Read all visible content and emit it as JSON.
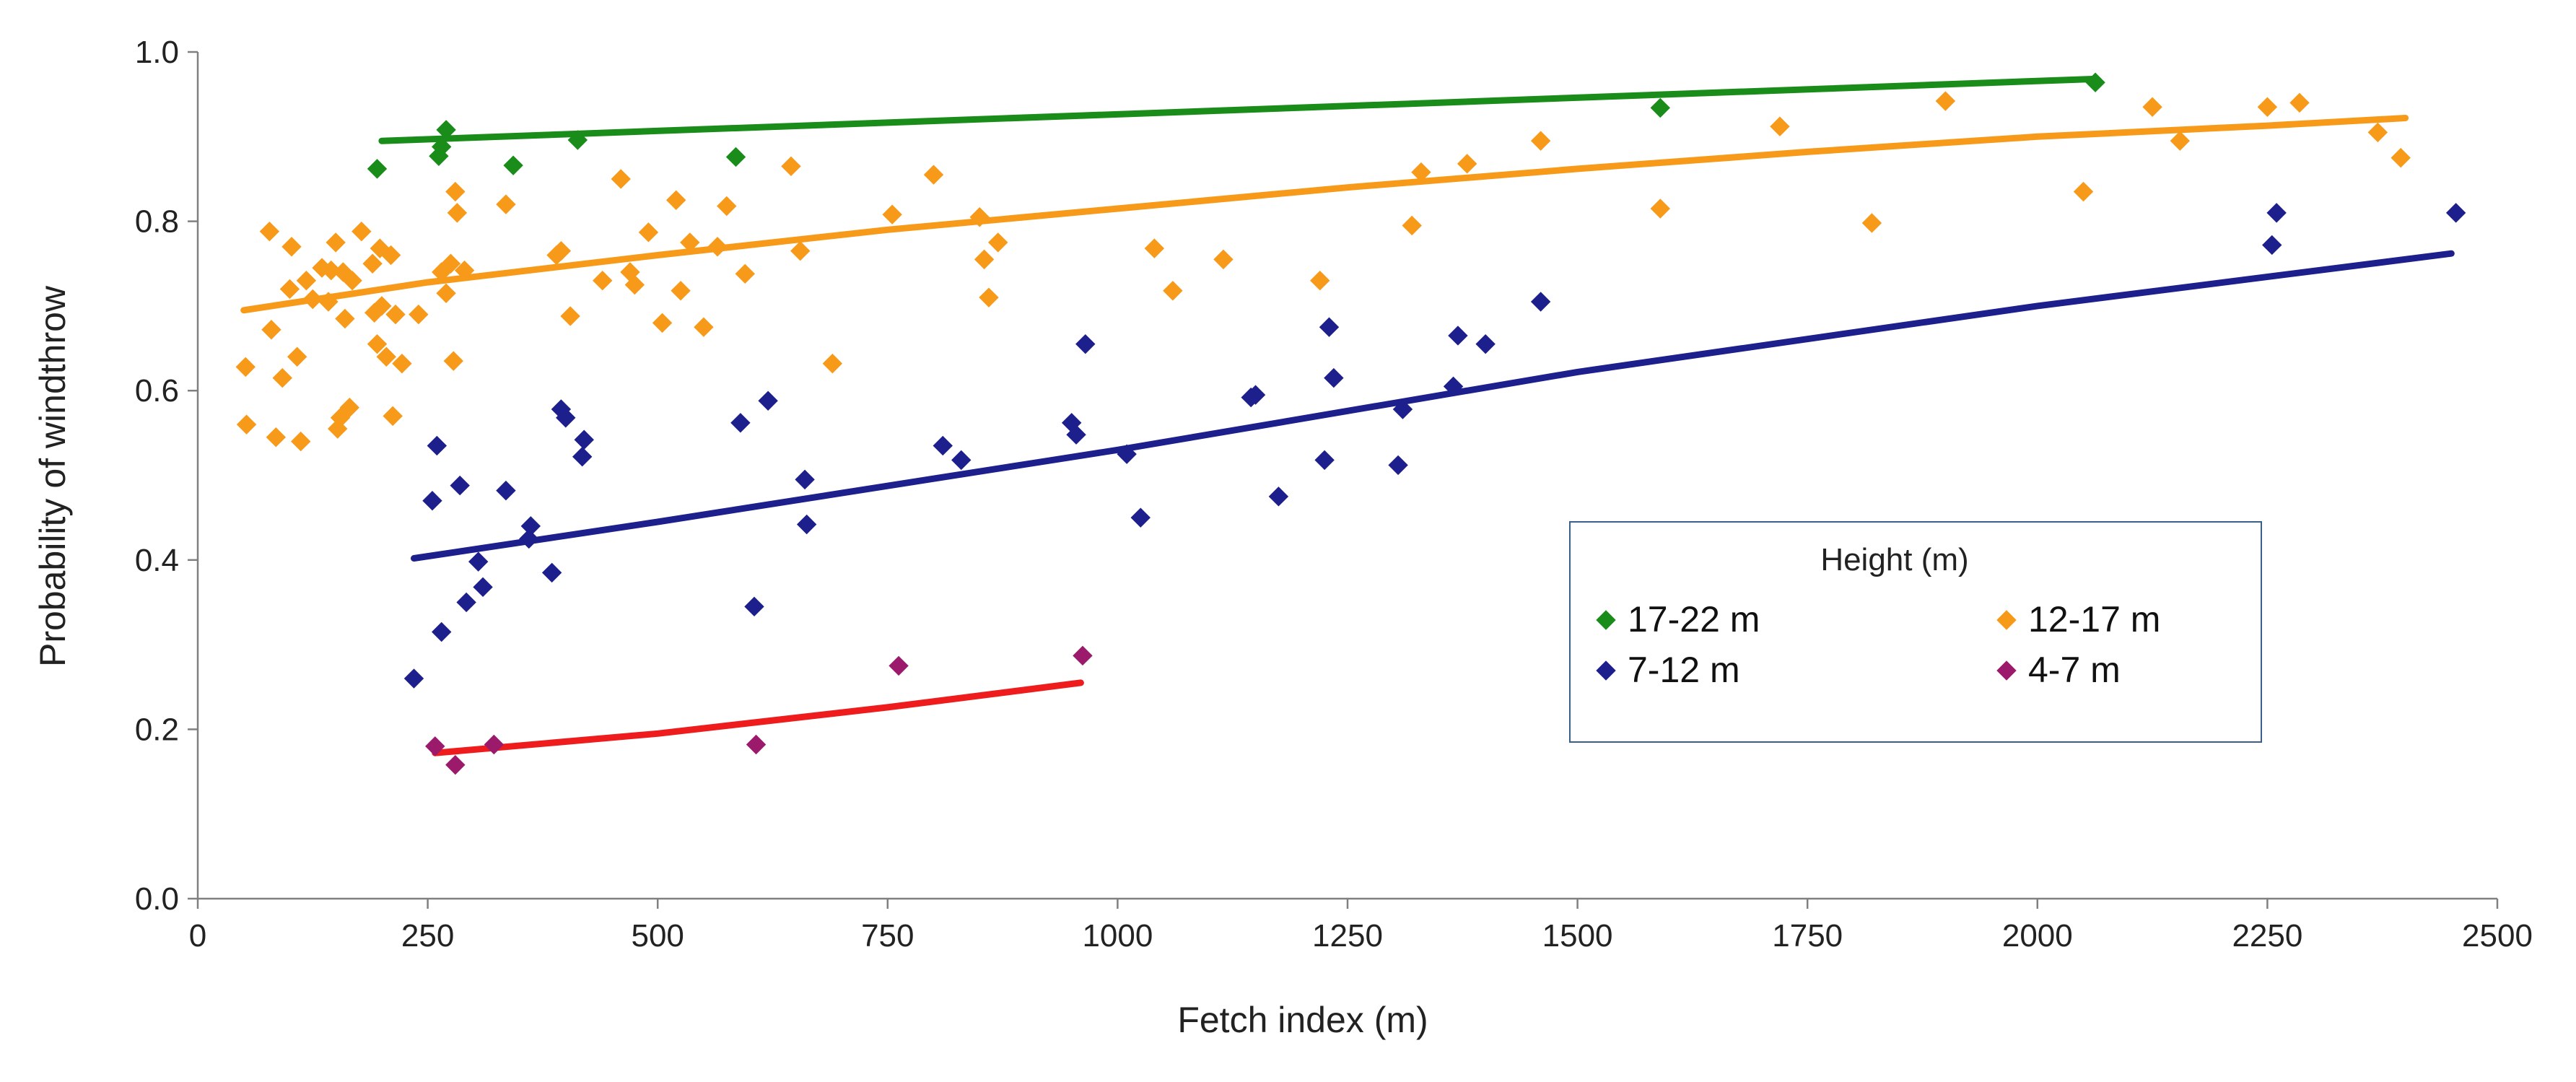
{
  "chart_data": {
    "type": "scatter",
    "title": "",
    "xlabel": "Fetch index (m)",
    "ylabel": "Probability of windthrow",
    "xlim": [
      0,
      2500
    ],
    "ylim": [
      0.0,
      1.0
    ],
    "xticks": [
      0,
      250,
      500,
      750,
      1000,
      1250,
      1500,
      1750,
      2000,
      2250,
      2500
    ],
    "xtick_labels": [
      "0",
      "250",
      "500",
      "750",
      "1000",
      "1250",
      "1500",
      "1750",
      "2000",
      "2250",
      "2500"
    ],
    "yticks": [
      0.0,
      0.2,
      0.4,
      0.6,
      0.8,
      1.0
    ],
    "ytick_labels": [
      "0.0",
      "0.2",
      "0.4",
      "0.6",
      "0.8",
      "1.0"
    ],
    "grid": false,
    "legend": {
      "title": "Height (m)",
      "placement": "center-right"
    },
    "series": [
      {
        "name": "17-22 m",
        "color": "#1a8c1a",
        "line_color": "#1a8c1a",
        "points": [
          [
            195,
            0.862
          ],
          [
            262,
            0.877
          ],
          [
            265,
            0.888
          ],
          [
            270,
            0.908
          ],
          [
            343,
            0.866
          ],
          [
            413,
            0.896
          ],
          [
            585,
            0.876
          ],
          [
            1590,
            0.934
          ],
          [
            2063,
            0.964
          ]
        ],
        "trend": [
          [
            200,
            0.895
          ],
          [
            2060,
            0.968
          ]
        ]
      },
      {
        "name": "12-17 m",
        "color": "#f79a1a",
        "line_color": "#f79a1a",
        "points": [
          [
            52,
            0.628
          ],
          [
            53,
            0.56
          ],
          [
            78,
            0.788
          ],
          [
            80,
            0.672
          ],
          [
            85,
            0.545
          ],
          [
            92,
            0.615
          ],
          [
            100,
            0.72
          ],
          [
            102,
            0.77
          ],
          [
            108,
            0.64
          ],
          [
            112,
            0.54
          ],
          [
            118,
            0.73
          ],
          [
            125,
            0.708
          ],
          [
            135,
            0.745
          ],
          [
            142,
            0.705
          ],
          [
            145,
            0.742
          ],
          [
            150,
            0.775
          ],
          [
            152,
            0.555
          ],
          [
            155,
            0.568
          ],
          [
            158,
            0.74
          ],
          [
            160,
            0.685
          ],
          [
            165,
            0.58
          ],
          [
            168,
            0.73
          ],
          [
            178,
            0.788
          ],
          [
            190,
            0.75
          ],
          [
            192,
            0.692
          ],
          [
            195,
            0.655
          ],
          [
            198,
            0.768
          ],
          [
            200,
            0.7
          ],
          [
            205,
            0.64
          ],
          [
            210,
            0.76
          ],
          [
            212,
            0.57
          ],
          [
            215,
            0.69
          ],
          [
            222,
            0.632
          ],
          [
            240,
            0.69
          ],
          [
            265,
            0.74
          ],
          [
            270,
            0.715
          ],
          [
            275,
            0.75
          ],
          [
            278,
            0.635
          ],
          [
            280,
            0.835
          ],
          [
            282,
            0.81
          ],
          [
            290,
            0.742
          ],
          [
            335,
            0.82
          ],
          [
            390,
            0.76
          ],
          [
            395,
            0.765
          ],
          [
            405,
            0.688
          ],
          [
            440,
            0.73
          ],
          [
            460,
            0.85
          ],
          [
            470,
            0.74
          ],
          [
            475,
            0.725
          ],
          [
            490,
            0.787
          ],
          [
            505,
            0.68
          ],
          [
            520,
            0.825
          ],
          [
            525,
            0.718
          ],
          [
            535,
            0.775
          ],
          [
            550,
            0.675
          ],
          [
            565,
            0.77
          ],
          [
            575,
            0.818
          ],
          [
            595,
            0.738
          ],
          [
            645,
            0.865
          ],
          [
            655,
            0.765
          ],
          [
            690,
            0.632
          ],
          [
            755,
            0.808
          ],
          [
            800,
            0.855
          ],
          [
            850,
            0.805
          ],
          [
            855,
            0.755
          ],
          [
            860,
            0.71
          ],
          [
            870,
            0.775
          ],
          [
            1040,
            0.768
          ],
          [
            1060,
            0.718
          ],
          [
            1115,
            0.755
          ],
          [
            1220,
            0.73
          ],
          [
            1320,
            0.795
          ],
          [
            1330,
            0.858
          ],
          [
            1380,
            0.868
          ],
          [
            1460,
            0.895
          ],
          [
            1590,
            0.815
          ],
          [
            1720,
            0.912
          ],
          [
            1820,
            0.798
          ],
          [
            1900,
            0.942
          ],
          [
            2050,
            0.835
          ],
          [
            2125,
            0.935
          ],
          [
            2155,
            0.895
          ],
          [
            2250,
            0.935
          ],
          [
            2285,
            0.94
          ],
          [
            2370,
            0.905
          ],
          [
            2395,
            0.875
          ]
        ],
        "trend": [
          [
            50,
            0.695
          ],
          [
            250,
            0.728
          ],
          [
            500,
            0.76
          ],
          [
            750,
            0.79
          ],
          [
            1000,
            0.815
          ],
          [
            1250,
            0.84
          ],
          [
            1500,
            0.862
          ],
          [
            1750,
            0.882
          ],
          [
            2000,
            0.9
          ],
          [
            2250,
            0.913
          ],
          [
            2400,
            0.922
          ]
        ]
      },
      {
        "name": "7-12 m",
        "color": "#1c1f8c",
        "line_color": "#1c1f8c",
        "points": [
          [
            235,
            0.26
          ],
          [
            255,
            0.47
          ],
          [
            260,
            0.535
          ],
          [
            265,
            0.315
          ],
          [
            285,
            0.488
          ],
          [
            292,
            0.35
          ],
          [
            305,
            0.398
          ],
          [
            310,
            0.368
          ],
          [
            335,
            0.482
          ],
          [
            360,
            0.425
          ],
          [
            362,
            0.44
          ],
          [
            385,
            0.385
          ],
          [
            395,
            0.578
          ],
          [
            400,
            0.568
          ],
          [
            418,
            0.522
          ],
          [
            420,
            0.542
          ],
          [
            590,
            0.562
          ],
          [
            605,
            0.345
          ],
          [
            620,
            0.588
          ],
          [
            660,
            0.495
          ],
          [
            662,
            0.442
          ],
          [
            810,
            0.535
          ],
          [
            830,
            0.518
          ],
          [
            950,
            0.562
          ],
          [
            955,
            0.548
          ],
          [
            965,
            0.655
          ],
          [
            1010,
            0.525
          ],
          [
            1025,
            0.45
          ],
          [
            1145,
            0.592
          ],
          [
            1150,
            0.595
          ],
          [
            1175,
            0.475
          ],
          [
            1225,
            0.518
          ],
          [
            1230,
            0.675
          ],
          [
            1235,
            0.615
          ],
          [
            1305,
            0.512
          ],
          [
            1310,
            0.578
          ],
          [
            1365,
            0.605
          ],
          [
            1370,
            0.665
          ],
          [
            1400,
            0.655
          ],
          [
            1460,
            0.705
          ],
          [
            2255,
            0.772
          ],
          [
            2260,
            0.81
          ],
          [
            2455,
            0.81
          ]
        ],
        "trend": [
          [
            235,
            0.402
          ],
          [
            500,
            0.445
          ],
          [
            1000,
            0.53
          ],
          [
            1500,
            0.622
          ],
          [
            2000,
            0.7
          ],
          [
            2450,
            0.762
          ]
        ]
      },
      {
        "name": "4-7 m",
        "color": "#9c1a6c",
        "line_color": "#ee1c1c",
        "points": [
          [
            258,
            0.18
          ],
          [
            280,
            0.158
          ],
          [
            322,
            0.182
          ],
          [
            607,
            0.182
          ],
          [
            762,
            0.275
          ],
          [
            962,
            0.287
          ]
        ],
        "trend": [
          [
            258,
            0.172
          ],
          [
            500,
            0.195
          ],
          [
            750,
            0.226
          ],
          [
            960,
            0.255
          ]
        ]
      }
    ]
  }
}
